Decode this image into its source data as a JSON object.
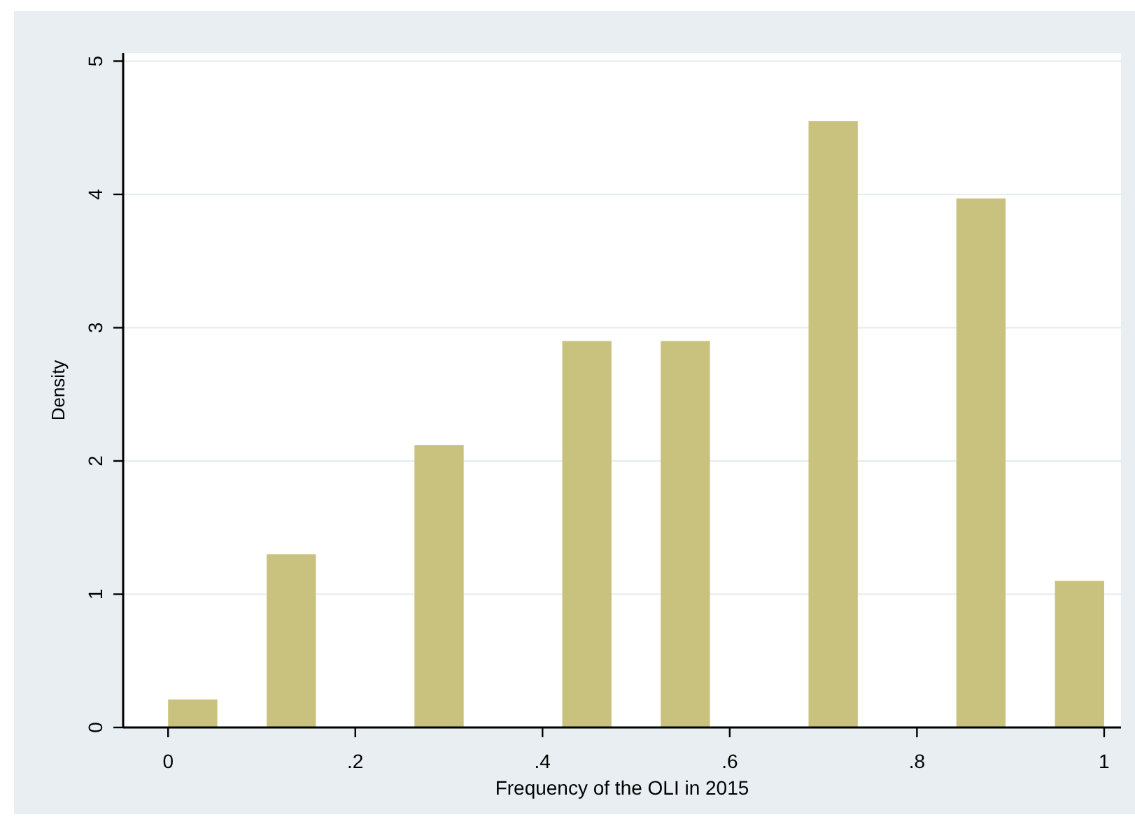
{
  "chart_data": {
    "type": "histogram",
    "xlabel": "Frequency of the OLI in 2015",
    "ylabel": "Density",
    "bins": [
      0,
      0.0526,
      0.1053,
      0.1579,
      0.2105,
      0.2632,
      0.3158,
      0.3684,
      0.4211,
      0.4737,
      0.5263,
      0.5789,
      0.6316,
      0.6842,
      0.7368,
      0.7895,
      0.8421,
      0.8947,
      0.9474,
      1
    ],
    "values": [
      0.21,
      0,
      1.3,
      0,
      0,
      2.12,
      0,
      0,
      2.9,
      0,
      2.9,
      0,
      0,
      4.55,
      0,
      0,
      3.97,
      0,
      1.1
    ],
    "color": "#c9c27f",
    "xlim": [
      -0.048,
      1.018
    ],
    "ylim": [
      0,
      5.06
    ],
    "xticks": [
      {
        "value": 0,
        "label": "0"
      },
      {
        "value": 0.2,
        "label": ".2"
      },
      {
        "value": 0.4,
        "label": ".4"
      },
      {
        "value": 0.6,
        "label": ".6"
      },
      {
        "value": 0.8,
        "label": ".8"
      },
      {
        "value": 1,
        "label": "1"
      }
    ],
    "yticks": [
      0,
      1,
      2,
      3,
      4,
      5
    ],
    "grid": "y"
  }
}
